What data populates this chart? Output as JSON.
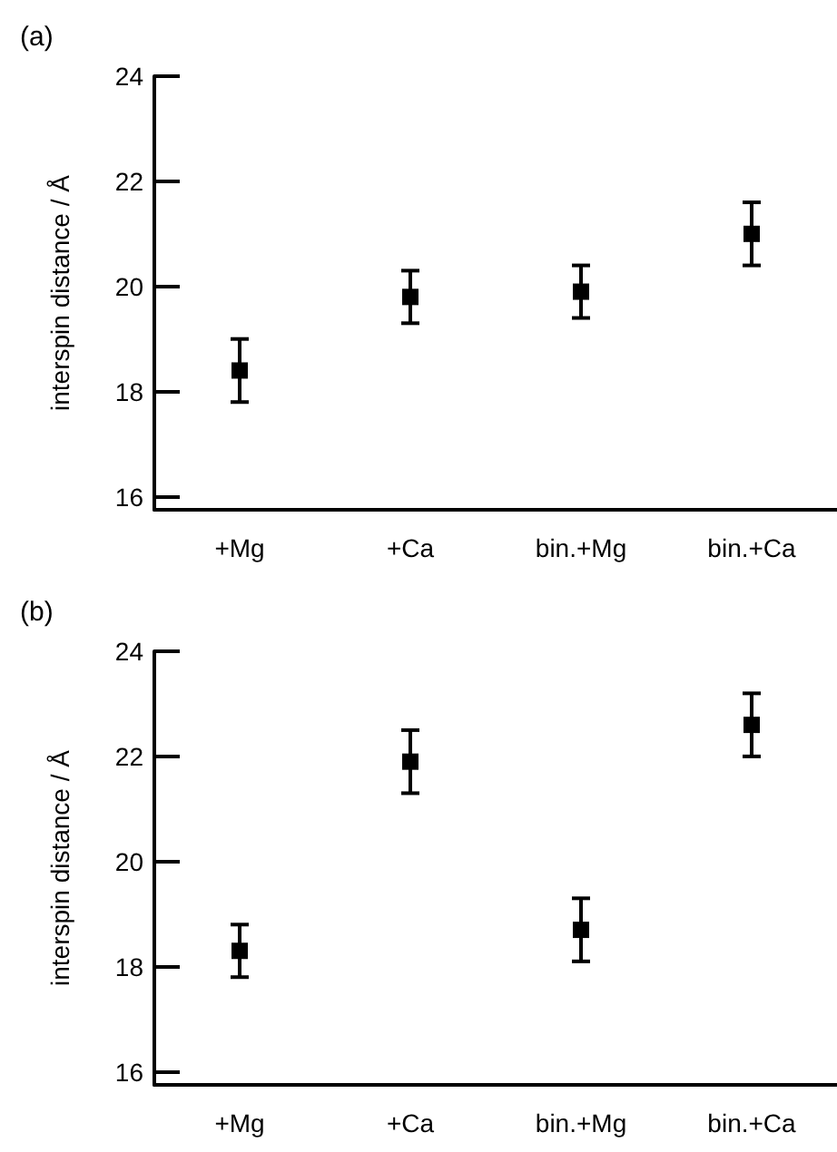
{
  "chart_data": [
    {
      "type": "scatter",
      "title": "(a)",
      "ylabel": "interspin distance / Å",
      "categories": [
        "+Mg",
        "+Ca",
        "bin.+Mg",
        "bin.+Ca"
      ],
      "series": [
        {
          "color": "#000000",
          "values": [
            18.4,
            19.8,
            19.9,
            21.0
          ],
          "errors": [
            0.6,
            0.5,
            0.5,
            0.6
          ]
        }
      ],
      "ylim": [
        15.75,
        24
      ],
      "yticks": [
        16,
        18,
        20,
        22,
        24
      ],
      "grid": false,
      "marker": "square"
    },
    {
      "type": "scatter",
      "title": "(b)",
      "ylabel": "interspin distance / Å",
      "categories": [
        "+Mg",
        "+Ca",
        "bin.+Mg",
        "bin.+Ca"
      ],
      "series": [
        {
          "color": "#000000",
          "values": [
            18.3,
            21.9,
            18.7,
            22.6
          ],
          "errors": [
            0.5,
            0.6,
            0.6,
            0.6
          ]
        }
      ],
      "ylim": [
        15.75,
        24
      ],
      "yticks": [
        16,
        18,
        20,
        22,
        24
      ],
      "grid": false,
      "marker": "square"
    }
  ]
}
